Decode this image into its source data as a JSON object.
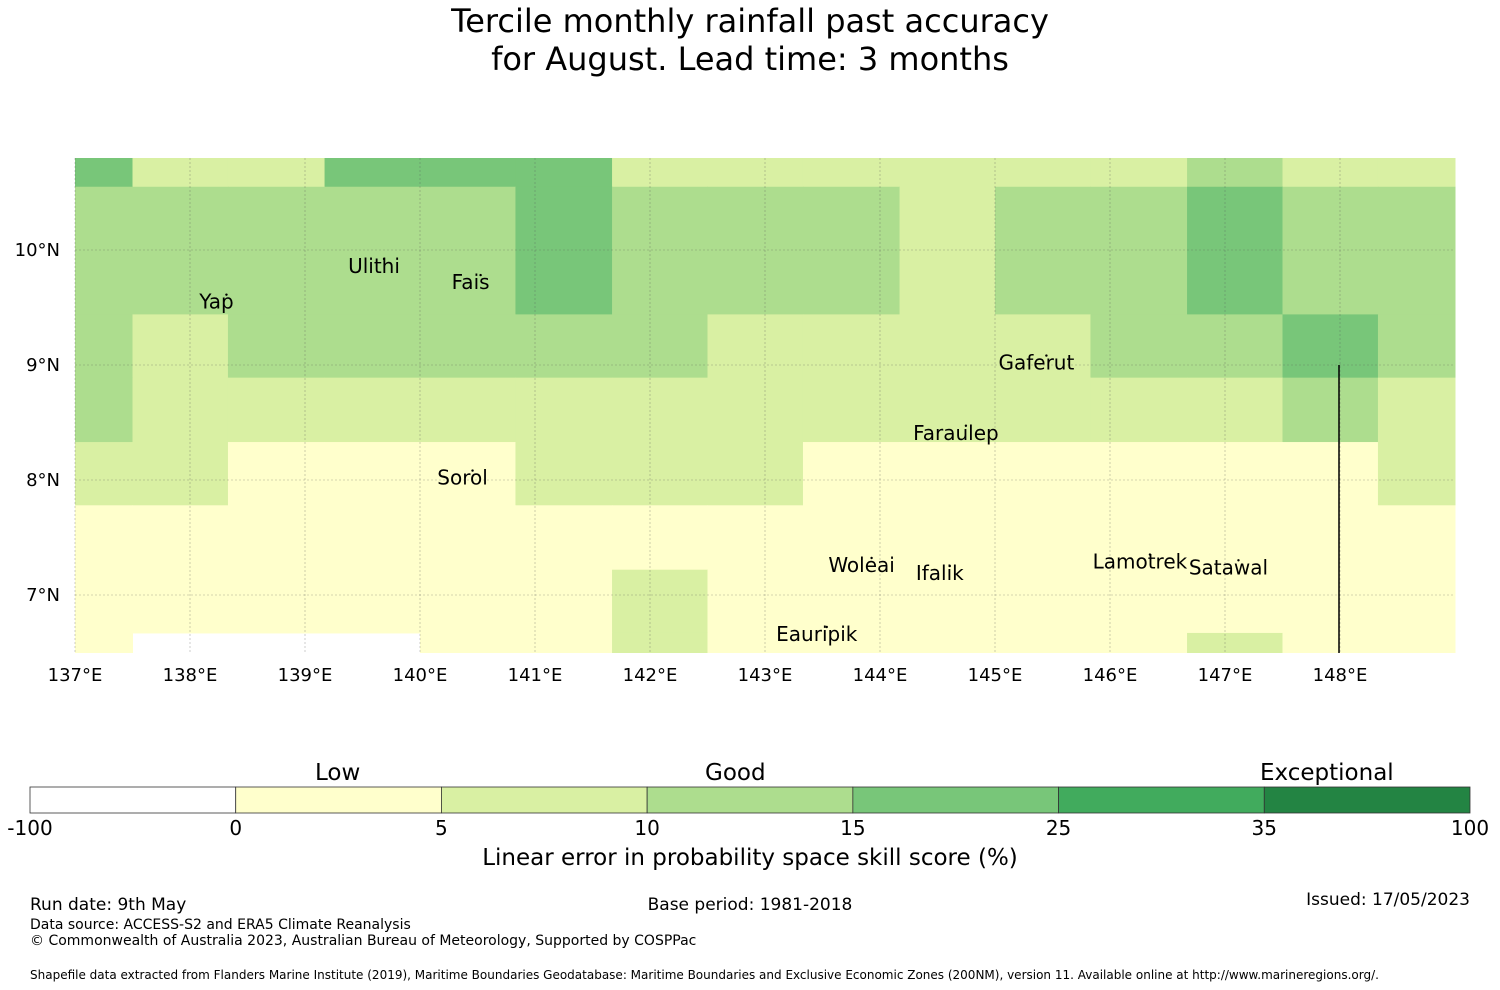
{
  "title": {
    "line1": "Tercile monthly rainfall past accuracy",
    "line2": "for August. Lead time: 3 months"
  },
  "map": {
    "lon_range": [
      137.0,
      149.0
    ],
    "lat_range": [
      6.5,
      10.8
    ],
    "lon_ticks": [
      {
        "value": 137,
        "label": "137°E"
      },
      {
        "value": 138,
        "label": "138°E"
      },
      {
        "value": 139,
        "label": "139°E"
      },
      {
        "value": 140,
        "label": "140°E"
      },
      {
        "value": 141,
        "label": "141°E"
      },
      {
        "value": 142,
        "label": "142°E"
      },
      {
        "value": 143,
        "label": "143°E"
      },
      {
        "value": 144,
        "label": "144°E"
      },
      {
        "value": 145,
        "label": "145°E"
      },
      {
        "value": 146,
        "label": "146°E"
      },
      {
        "value": 147,
        "label": "147°E"
      },
      {
        "value": 148,
        "label": "148°E"
      }
    ],
    "lat_ticks": [
      {
        "value": 10,
        "label": "10°N"
      },
      {
        "value": 9,
        "label": "9°N"
      },
      {
        "value": 8,
        "label": "8°N"
      },
      {
        "value": 7,
        "label": "7°N"
      }
    ],
    "grid_lines": true,
    "cell_lon_edges": [
      137.0,
      137.5,
      138.33,
      139.17,
      140.0,
      140.83,
      141.67,
      142.5,
      143.33,
      144.17,
      145.0,
      145.83,
      146.67,
      147.5,
      148.33,
      149.0
    ],
    "cell_lat_edges": [
      10.8,
      10.55,
      9.44,
      8.89,
      8.33,
      7.78,
      7.22,
      6.67,
      6.5
    ],
    "cell_classes": [
      [
        3,
        1,
        1,
        3,
        3,
        3,
        1,
        1,
        1,
        1,
        1,
        1,
        2,
        1,
        1
      ],
      [
        2,
        2,
        2,
        2,
        2,
        3,
        2,
        2,
        2,
        1,
        2,
        2,
        3,
        2,
        2
      ],
      [
        2,
        1,
        2,
        2,
        2,
        2,
        2,
        1,
        1,
        1,
        1,
        2,
        2,
        3,
        2
      ],
      [
        2,
        1,
        1,
        1,
        1,
        1,
        1,
        1,
        1,
        1,
        1,
        1,
        1,
        2,
        1
      ],
      [
        1,
        1,
        0,
        0,
        0,
        1,
        1,
        1,
        0,
        0,
        0,
        0,
        0,
        0,
        1
      ],
      [
        0,
        0,
        0,
        0,
        0,
        0,
        0,
        0,
        0,
        0,
        0,
        0,
        0,
        0,
        0
      ],
      [
        0,
        0,
        0,
        0,
        0,
        0,
        1,
        0,
        0,
        0,
        0,
        0,
        0,
        0,
        0
      ],
      [
        0,
        -1,
        -1,
        -1,
        0,
        0,
        1,
        0,
        0,
        0,
        0,
        0,
        1,
        0,
        0
      ]
    ],
    "islands": [
      {
        "name": "Yap",
        "lon": 138.23,
        "lat": 9.49
      },
      {
        "name": "Ulithi",
        "lon": 139.6,
        "lat": 9.8
      },
      {
        "name": "Fais",
        "lon": 140.44,
        "lat": 9.66
      },
      {
        "name": "Gaferut",
        "lon": 145.36,
        "lat": 8.96
      },
      {
        "name": "Faraulep",
        "lon": 144.66,
        "lat": 8.35
      },
      {
        "name": "Sorol",
        "lon": 140.37,
        "lat": 7.96
      },
      {
        "name": "Woleai",
        "lon": 143.84,
        "lat": 7.2
      },
      {
        "name": "Ifalik",
        "lon": 144.52,
        "lat": 7.13
      },
      {
        "name": "Lamotrek",
        "lon": 146.26,
        "lat": 7.23
      },
      {
        "name": "Satawal",
        "lon": 147.03,
        "lat": 7.18
      },
      {
        "name": "Eauripik",
        "lon": 143.45,
        "lat": 6.6
      }
    ]
  },
  "colorbar": {
    "boundaries": [
      "-100",
      "0",
      "5",
      "10",
      "15",
      "25",
      "35",
      "100"
    ],
    "colors": [
      "#ffffff",
      "#ffffcc",
      "#d9f0a3",
      "#addd8e",
      "#78c679",
      "#41ab5d",
      "#238443"
    ],
    "categories": {
      "low": "Low",
      "good": "Good",
      "exceptional": "Exceptional"
    },
    "label": "Linear error in probability space skill score (%)"
  },
  "footer": {
    "run_date": "Run date: 9th May",
    "base_period": "Base period: 1981-2018",
    "issued": "Issued: 17/05/2023",
    "data_source": "Data source: ACCESS-S2 and ERA5 Climate Reanalysis",
    "copyright": "© Commonwealth of Australia 2023, Australian Bureau of Meteorology, Supported by COSPPac",
    "shapefile": "Shapefile data extracted from Flanders Marine Institute (2019), Maritime Boundaries Geodatabase: Maritime Boundaries and Exclusive Economic Zones (200NM), version 11. Available online at http://www.marineregions.org/."
  }
}
